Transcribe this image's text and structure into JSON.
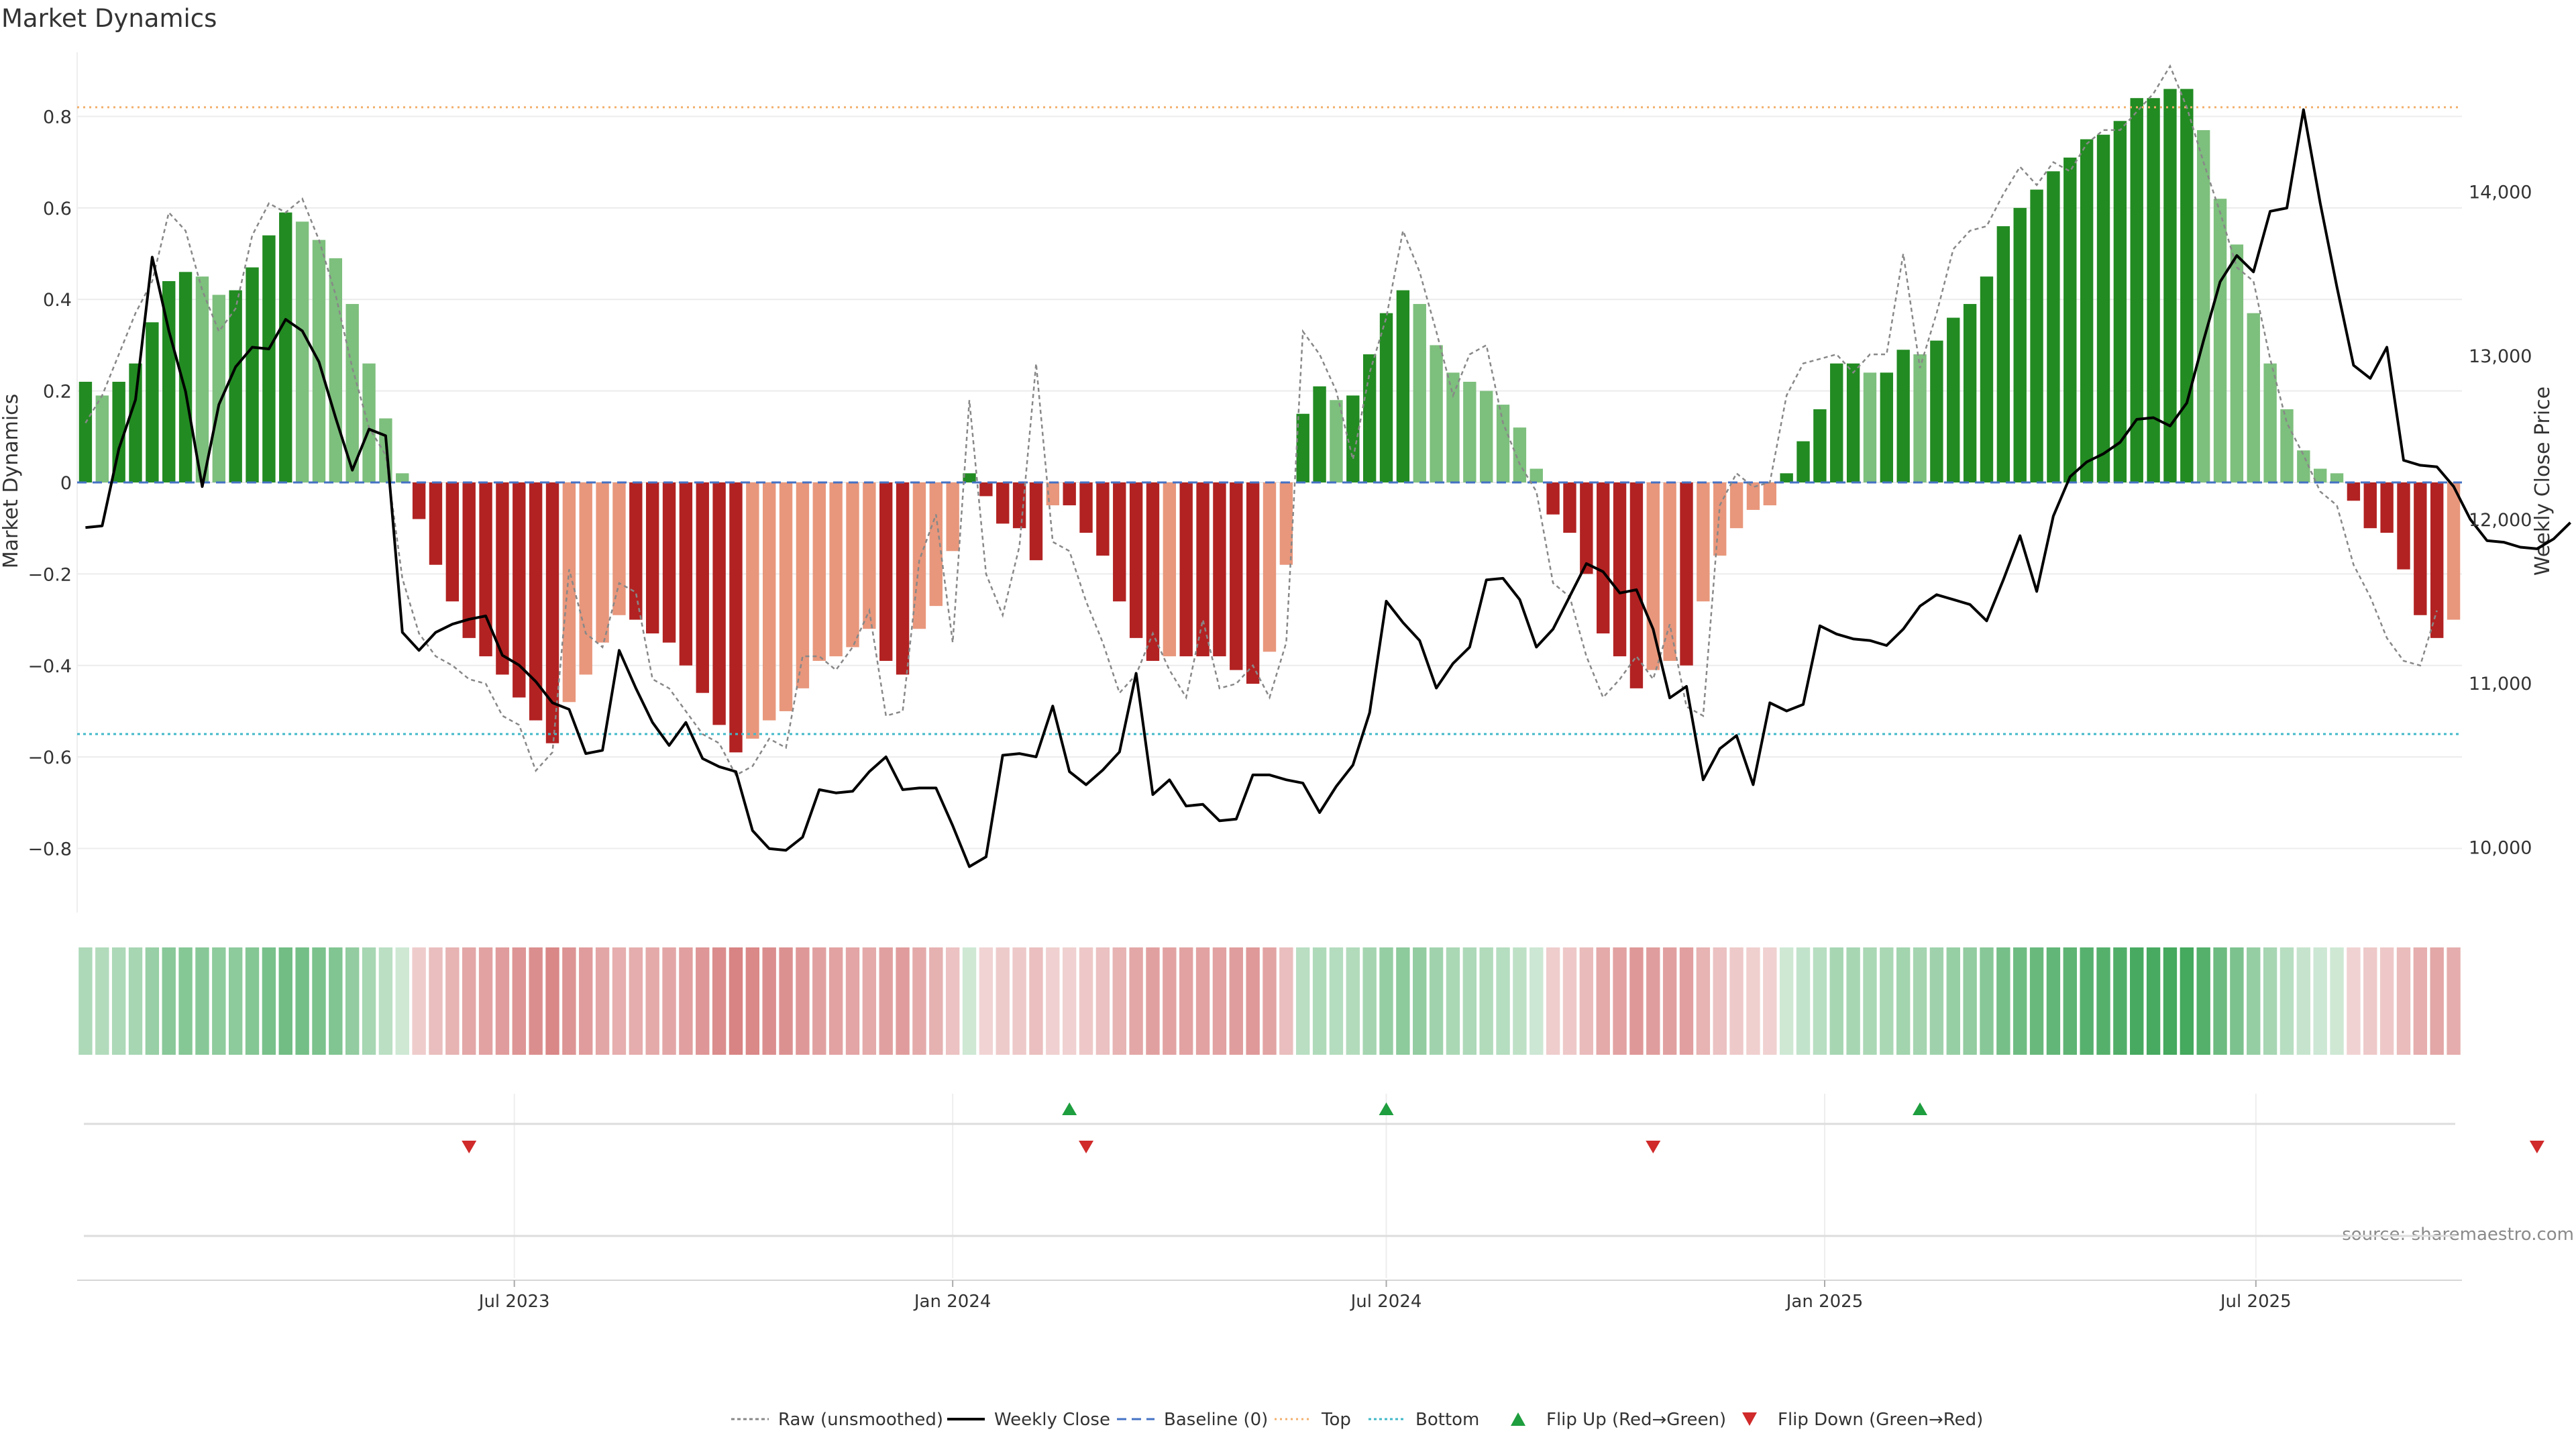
{
  "title": "Market Dynamics",
  "source": "source: sharemaestro.com",
  "colors": {
    "strong_up": "#228b22",
    "weak_up": "#7dbf7d",
    "strong_down": "#b22222",
    "weak_down": "#e8977c",
    "close_line": "#000000",
    "raw_line": "#888888",
    "baseline": "#4472c4",
    "top": "#f2b06c",
    "bottom": "#42b8c8",
    "flip_up": "#1e9e3e",
    "flip_down": "#d02a2a"
  },
  "chart_data": {
    "type": "bar",
    "title": "Market Dynamics",
    "ylabel_left": "Market Dynamics",
    "ylabel_right": "Weekly Close Price",
    "ylim_left": [
      -0.94,
      0.94
    ],
    "ylim_right": [
      9600,
      14850
    ],
    "yticks_left": [
      "0.8",
      "0.6",
      "0.4",
      "0.2",
      "0",
      "−0.2",
      "−0.4",
      "−0.6",
      "−0.8"
    ],
    "yticks_right": [
      "14,000",
      "13,000",
      "12,000",
      "11,000",
      "10,000"
    ],
    "xticks": [
      "Jul 2023",
      "Jan 2024",
      "Jul 2024",
      "Jan 2025",
      "Jul 2025"
    ],
    "x_start": "2023-01-02",
    "week_days": 7,
    "top_level": 0.82,
    "bottom_level": -0.55,
    "baseline_level": 0,
    "smoothed": [
      0.22,
      0.19,
      0.22,
      0.26,
      0.35,
      0.44,
      0.46,
      0.45,
      0.41,
      0.42,
      0.47,
      0.54,
      0.59,
      0.57,
      0.53,
      0.49,
      0.39,
      0.26,
      0.14,
      0.02,
      -0.08,
      -0.18,
      -0.26,
      -0.34,
      -0.38,
      -0.42,
      -0.47,
      -0.52,
      -0.57,
      -0.48,
      -0.42,
      -0.35,
      -0.29,
      -0.3,
      -0.33,
      -0.35,
      -0.4,
      -0.46,
      -0.53,
      -0.59,
      -0.56,
      -0.52,
      -0.5,
      -0.45,
      -0.39,
      -0.38,
      -0.36,
      -0.32,
      -0.39,
      -0.42,
      -0.32,
      -0.27,
      -0.15,
      0.02,
      -0.03,
      -0.09,
      -0.1,
      -0.17,
      -0.05,
      -0.05,
      -0.11,
      -0.16,
      -0.26,
      -0.34,
      -0.39,
      -0.38,
      -0.38,
      -0.38,
      -0.38,
      -0.41,
      -0.44,
      -0.37,
      -0.18,
      0.15,
      0.21,
      0.18,
      0.19,
      0.28,
      0.37,
      0.42,
      0.39,
      0.3,
      0.24,
      0.22,
      0.2,
      0.17,
      0.12,
      0.03,
      -0.07,
      -0.11,
      -0.2,
      -0.33,
      -0.38,
      -0.45,
      -0.41,
      -0.39,
      -0.4,
      -0.26,
      -0.16,
      -0.1,
      -0.06,
      -0.05,
      0.02,
      0.09,
      0.16,
      0.26,
      0.26,
      0.24,
      0.24,
      0.29,
      0.28,
      0.31,
      0.36,
      0.39,
      0.45,
      0.56,
      0.6,
      0.64,
      0.68,
      0.71,
      0.75,
      0.76,
      0.79,
      0.84,
      0.84,
      0.86,
      0.86,
      0.77,
      0.62,
      0.52,
      0.37,
      0.26,
      0.16,
      0.07,
      0.03,
      0.02,
      -0.04,
      -0.1,
      -0.11,
      -0.19,
      -0.29,
      -0.34,
      -0.3
    ],
    "close": [
      11950,
      11960,
      12430,
      12730,
      13600,
      13150,
      12780,
      12200,
      12700,
      12930,
      13050,
      13040,
      13220,
      13150,
      12960,
      12620,
      12300,
      12550,
      12510,
      11310,
      11200,
      11310,
      11360,
      11390,
      11410,
      11170,
      11110,
      11010,
      10880,
      10840,
      10570,
      10590,
      11200,
      10970,
      10760,
      10620,
      10760,
      10540,
      10490,
      10460,
      10100,
      9990,
      9980,
      10060,
      10350,
      10330,
      10340,
      10460,
      10550,
      10350,
      10360,
      10360,
      10130,
      9880,
      9940,
      10560,
      10570,
      10550,
      10860,
      10460,
      10380,
      10470,
      10580,
      11060,
      10320,
      10410,
      10250,
      10260,
      10160,
      10170,
      10440,
      10440,
      10410,
      10390,
      10210,
      10370,
      10500,
      10820,
      11500,
      11370,
      11260,
      10970,
      11120,
      11220,
      11630,
      11640,
      11510,
      11220,
      11330,
      11530,
      11730,
      11680,
      11550,
      11570,
      11330,
      10910,
      10980,
      10410,
      10600,
      10680,
      10380,
      10880,
      10830,
      10870,
      11350,
      11300,
      11270,
      11260,
      11230,
      11330,
      11470,
      11540,
      11510,
      11480,
      11380,
      11630,
      11900,
      11560,
      12020,
      12260,
      12350,
      12400,
      12470,
      12610,
      12620,
      12570,
      12710,
      13090,
      13450,
      13610,
      13510,
      13880,
      13900,
      14500,
      13930,
      13420,
      12940,
      12860,
      13050,
      12360,
      12330,
      12320,
      12200,
      12000,
      11870,
      11860,
      11830,
      11820,
      11880,
      11980
    ],
    "raw": [
      0.13,
      0.19,
      0.28,
      0.37,
      0.44,
      0.59,
      0.55,
      0.42,
      0.33,
      0.38,
      0.54,
      0.61,
      0.59,
      0.62,
      0.53,
      0.41,
      0.25,
      0.12,
      0.06,
      -0.21,
      -0.33,
      -0.38,
      -0.4,
      -0.43,
      -0.44,
      -0.51,
      -0.53,
      -0.63,
      -0.59,
      -0.19,
      -0.33,
      -0.36,
      -0.22,
      -0.24,
      -0.43,
      -0.45,
      -0.5,
      -0.55,
      -0.57,
      -0.64,
      -0.62,
      -0.56,
      -0.58,
      -0.38,
      -0.38,
      -0.41,
      -0.36,
      -0.28,
      -0.51,
      -0.5,
      -0.17,
      -0.07,
      -0.35,
      0.18,
      -0.2,
      -0.29,
      -0.14,
      0.26,
      -0.13,
      -0.15,
      -0.26,
      -0.35,
      -0.46,
      -0.42,
      -0.33,
      -0.41,
      -0.47,
      -0.3,
      -0.45,
      -0.44,
      -0.4,
      -0.47,
      -0.35,
      0.33,
      0.28,
      0.2,
      0.05,
      0.24,
      0.36,
      0.55,
      0.46,
      0.33,
      0.19,
      0.28,
      0.3,
      0.13,
      0.04,
      -0.02,
      -0.22,
      -0.25,
      -0.38,
      -0.47,
      -0.43,
      -0.38,
      -0.43,
      -0.31,
      -0.49,
      -0.51,
      -0.05,
      0.02,
      -0.01,
      0.0,
      0.19,
      0.26,
      0.27,
      0.28,
      0.24,
      0.28,
      0.28,
      0.5,
      0.25,
      0.37,
      0.51,
      0.55,
      0.56,
      0.63,
      0.69,
      0.65,
      0.7,
      0.68,
      0.74,
      0.77,
      0.77,
      0.81,
      0.85,
      0.91,
      0.82,
      0.7,
      0.59,
      0.47,
      0.44,
      0.27,
      0.13,
      0.06,
      -0.02,
      -0.05,
      -0.18,
      -0.25,
      -0.34,
      -0.39,
      -0.4,
      -0.28
    ],
    "flips": [
      {
        "x": "2023-06-12",
        "type": "down"
      },
      {
        "x": "2024-02-19",
        "type": "up"
      },
      {
        "x": "2024-02-26",
        "type": "down"
      },
      {
        "x": "2024-07-01",
        "type": "up"
      },
      {
        "x": "2024-10-21",
        "type": "down"
      },
      {
        "x": "2025-02-10",
        "type": "up"
      },
      {
        "x": "2025-10-27",
        "type": "down"
      }
    ],
    "legend_position": "bottom"
  },
  "legend": [
    {
      "label": "Raw (unsmoothed)",
      "kind": "dotted-line",
      "icon": "dotted-line-icon"
    },
    {
      "label": "Weekly Close",
      "kind": "line",
      "icon": "solid-line-icon"
    },
    {
      "label": "Baseline (0)",
      "kind": "dashed-line",
      "icon": "dashed-line-icon"
    },
    {
      "label": "Top",
      "kind": "top-dotted",
      "icon": "dotted-line-icon"
    },
    {
      "label": "Bottom",
      "kind": "bottom-dotted",
      "icon": "dotted-line-icon"
    },
    {
      "label": "Flip Up (Red→Green)",
      "kind": "tri-up",
      "icon": "triangle-up-icon"
    },
    {
      "label": "Flip Down (Green→Red)",
      "kind": "tri-down",
      "icon": "triangle-down-icon"
    }
  ]
}
